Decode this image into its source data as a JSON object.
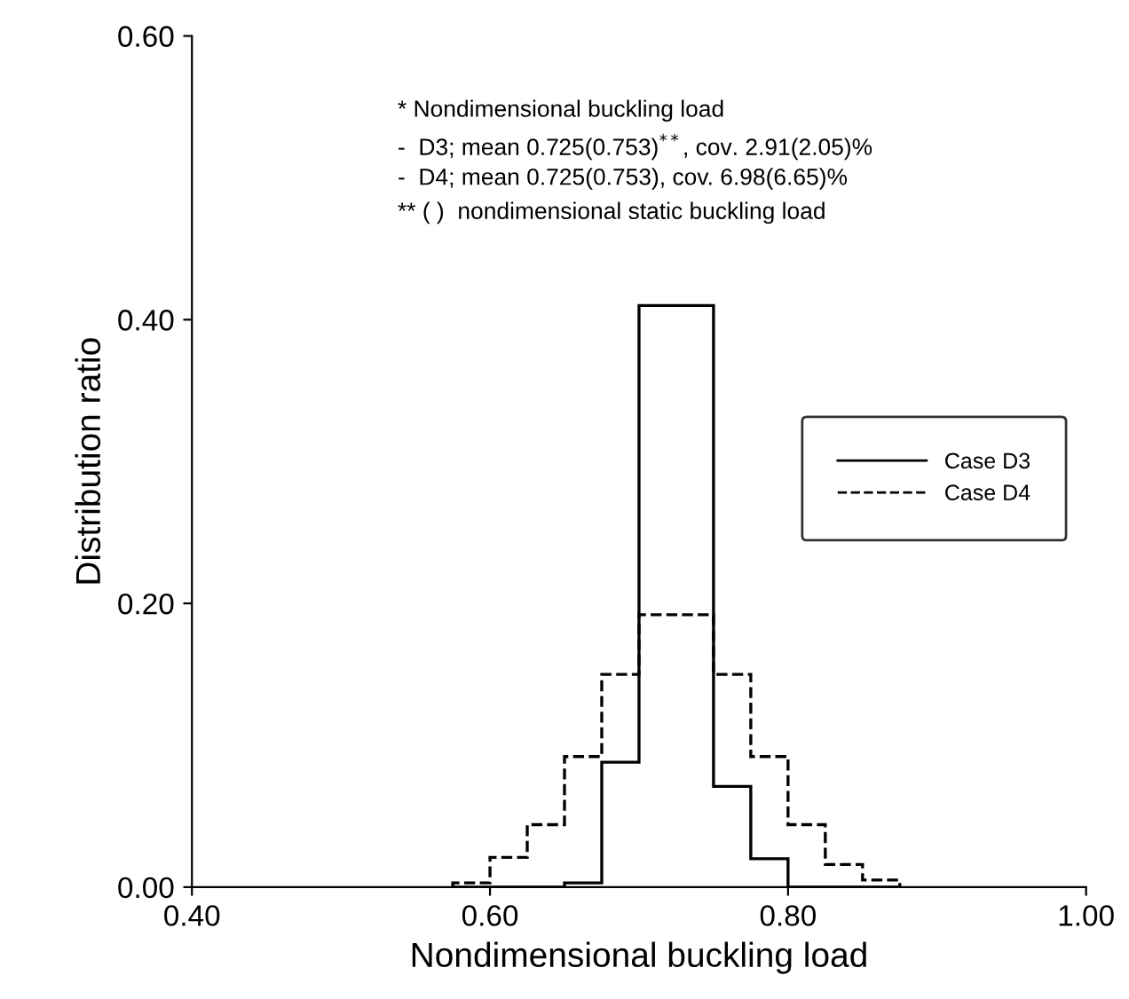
{
  "chart_data": {
    "type": "histogram",
    "xlabel": "Nondimensional buckling load",
    "ylabel": "Distribution ratio",
    "bins": [
      0.575,
      0.6,
      0.625,
      0.65,
      0.675,
      0.7,
      0.725,
      0.75,
      0.775,
      0.8,
      0.825,
      0.85,
      0.875
    ],
    "series": [
      {
        "name": "Case D3",
        "color": "#000000",
        "line_style": "solid",
        "values": [
          0,
          0,
          0,
          0.003,
          0.088,
          0.41,
          0.41,
          0.071,
          0.02,
          0,
          0,
          0
        ]
      },
      {
        "name": "Case D4",
        "color": "#000000",
        "line_style": "dashed",
        "values": [
          0.003,
          0.021,
          0.044,
          0.092,
          0.15,
          0.192,
          0.192,
          0.15,
          0.092,
          0.044,
          0.016,
          0.005
        ]
      }
    ],
    "xlim": [
      0.4,
      1.0
    ],
    "xticks": [
      {
        "value": 0.4,
        "label": "0.40"
      },
      {
        "value": 0.6,
        "label": "0.60"
      },
      {
        "value": 0.8,
        "label": "0.80"
      },
      {
        "value": 1.0,
        "label": "1.00"
      }
    ],
    "ylim": [
      0,
      0.6
    ],
    "yticks": [
      {
        "value": 0,
        "label": "0.00"
      },
      {
        "value": 0.2,
        "label": "0.20"
      },
      {
        "value": 0.4,
        "label": "0.40"
      },
      {
        "value": 0.6,
        "label": "0.60"
      }
    ],
    "legend": "right",
    "grid": false,
    "annotations": [
      "* Nondimensional buckling load",
      "-  D3; mean 0.725(0.753)$^{**}$, cov. 2.91(2.05)%",
      "-  D4; mean 0.725(0.753), cov. 6.98(6.65)%",
      "** ( )  nondimensional static buckling load"
    ]
  }
}
